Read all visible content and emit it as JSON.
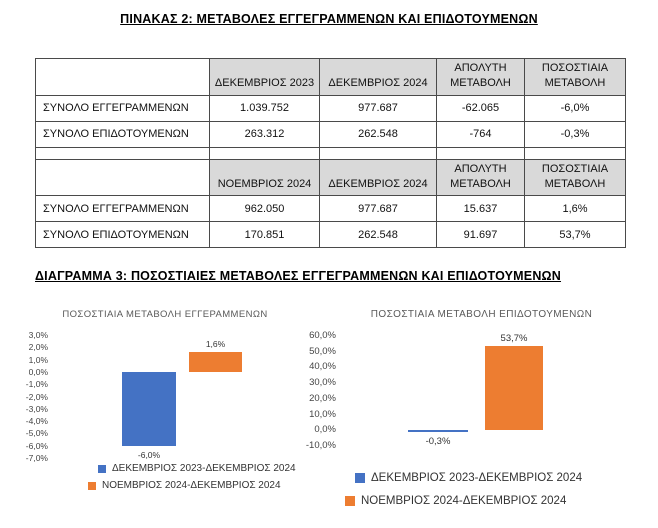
{
  "page": {
    "table_title": "ΠΙΝΑΚΑΣ 2: ΜΕΤΑΒΟΛΕΣ ΕΓΓΕΓΡΑΜΜΕΝΩΝ ΚΑΙ ΕΠΙΔΟΤΟΥΜΕΝΩΝ",
    "diagram_title": "ΔΙΑΓΡΑΜΜΑ 3: ΠΟΣΟΣΤΙΑΙΕΣ ΜΕΤΑΒΟΛΕΣ ΕΓΓΕΓΡΑΜΜΕΝΩΝ ΚΑΙ ΕΠΙΔΟΤΟΥΜΕΝΩΝ"
  },
  "table": {
    "sections": [
      {
        "headers": [
          "",
          "ΔΕΚΕΜΒΡΙΟΣ 2023",
          "ΔΕΚΕΜΒΡΙΟΣ 2024",
          "ΑΠΟΛΥΤΗ ΜΕΤΑΒΟΛΗ",
          "ΠΟΣΟΣΤΙΑΙΑ ΜΕΤΑΒΟΛΗ"
        ],
        "rows": [
          [
            "ΣΥΝΟΛΟ ΕΓΓΕΓΡΑΜΜΕΝΩΝ",
            "1.039.752",
            "977.687",
            "-62.065",
            "-6,0%"
          ],
          [
            "ΣΥΝΟΛΟ ΕΠΙΔΟΤΟΥΜΕΝΩΝ",
            "263.312",
            "262.548",
            "-764",
            "-0,3%"
          ]
        ]
      },
      {
        "headers": [
          "",
          "ΝΟΕΜΒΡΙΟΣ 2024",
          "ΔΕΚΕΜΒΡΙΟΣ 2024",
          "ΑΠΟΛΥΤΗ ΜΕΤΑΒΟΛΗ",
          "ΠΟΣΟΣΤΙΑΙΑ ΜΕΤΑΒΟΛΗ"
        ],
        "rows": [
          [
            "ΣΥΝΟΛΟ ΕΓΓΕΓΡΑΜΜΕΝΩΝ",
            "962.050",
            "977.687",
            "15.637",
            "1,6%"
          ],
          [
            "ΣΥΝΟΛΟ ΕΠΙΔΟΤΟΥΜΕΝΩΝ",
            "170.851",
            "262.548",
            "91.697",
            "53,7%"
          ]
        ]
      }
    ]
  },
  "chart_data": [
    {
      "type": "bar",
      "title": "ΠΟΣΟΣΤΙΑΙΑ ΜΕΤΑΒΟΛΗ ΕΓΓΕΡΑΜΜΕΝΩΝ",
      "series": [
        {
          "name": "ΔΕΚΕΜΒΡΙΟΣ 2023-ΔΕΚΕΜΒΡΙΟΣ 2024",
          "value": -6.0,
          "label": "-6,0%",
          "color": "#4472C4"
        },
        {
          "name": "ΝΟΕΜΒΡΙΟΣ 2024-ΔΕΚΕΜΒΡΙΟΣ 2024",
          "value": 1.6,
          "label": "1,6%",
          "color": "#ED7D31"
        }
      ],
      "ylabel": "",
      "xlabel": "",
      "ylim": [
        -7,
        3
      ],
      "ytick_step": 1,
      "tick_labels": [
        "3,0%",
        "2,0%",
        "1,0%",
        "0,0%",
        "-1,0%",
        "-2,0%",
        "-3,0%",
        "-4,0%",
        "-5,0%",
        "-6,0%",
        "-7,0%"
      ],
      "grid": false,
      "legend_position": "bottom"
    },
    {
      "type": "bar",
      "title": "ΠΟΣΟΣΤΙΑΙΑ ΜΕΤΑΒΟΛΗ ΕΠΙΔΟΤΟΥΜΕΝΩΝ",
      "series": [
        {
          "name": "ΔΕΚΕΜΒΡΙΟΣ 2023-ΔΕΚΕΜΒΡΙΟΣ 2024",
          "value": -0.3,
          "label": "-0,3%",
          "color": "#4472C4"
        },
        {
          "name": "ΝΟΕΜΒΡΙΟΣ 2024-ΔΕΚΕΜΒΡΙΟΣ 2024",
          "value": 53.7,
          "label": "53,7%",
          "color": "#ED7D31"
        }
      ],
      "ylabel": "",
      "xlabel": "",
      "ylim": [
        -10,
        60
      ],
      "ytick_step": 10,
      "tick_labels": [
        "60,0%",
        "50,0%",
        "40,0%",
        "30,0%",
        "20,0%",
        "10,0%",
        "0,0%",
        "-10,0%"
      ],
      "grid": false,
      "legend_position": "bottom"
    }
  ]
}
